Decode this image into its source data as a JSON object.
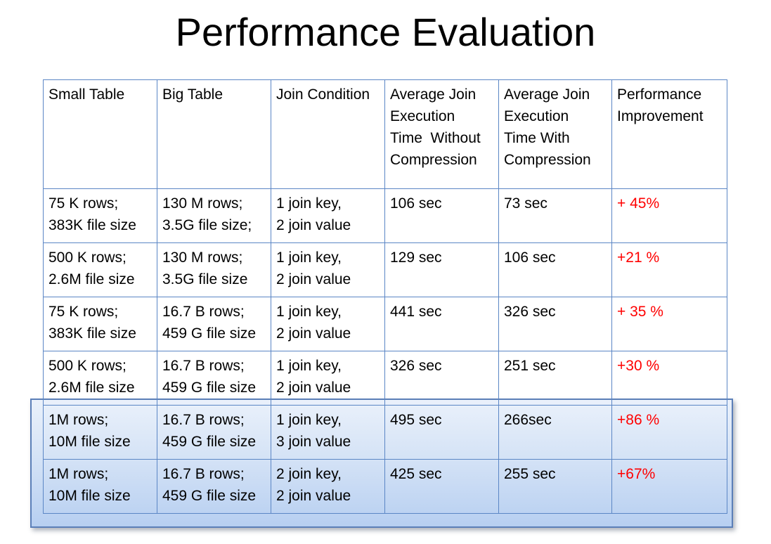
{
  "title": "Performance Evaluation",
  "table": {
    "headers": [
      {
        "lines": [
          "Small Table"
        ],
        "bold": false
      },
      {
        "lines": [
          "Big Table"
        ],
        "bold": false
      },
      {
        "lines": [
          "Join Condition"
        ],
        "bold": false
      },
      {
        "lines": [
          "Average Join",
          "Execution",
          "Time  Without",
          "Compression"
        ],
        "bold": true
      },
      {
        "lines": [
          "Average Join",
          "Execution",
          "Time With",
          "Compression"
        ],
        "bold": true
      },
      {
        "lines": [
          "Performance",
          "Improvement"
        ],
        "bold": true
      }
    ],
    "rows": [
      {
        "highlighted": false,
        "small_table": [
          "75 K rows;",
          "383K file size"
        ],
        "big_table": [
          "130 M rows;",
          "3.5G file size;"
        ],
        "join_condition": [
          "1 join key,",
          "2 join value"
        ],
        "without_compression": "106 sec",
        "with_compression": "73 sec",
        "improvement": "+ 45%"
      },
      {
        "highlighted": false,
        "small_table": [
          "500 K rows;",
          "2.6M file size"
        ],
        "big_table": [
          "130 M rows;",
          "3.5G file size"
        ],
        "join_condition": [
          "1 join key,",
          "2 join value"
        ],
        "without_compression": "129 sec",
        "with_compression": "106 sec",
        "improvement": "+21 %"
      },
      {
        "highlighted": false,
        "small_table": [
          "75 K rows;",
          "383K file size"
        ],
        "big_table": [
          "16.7 B rows;",
          "459 G file size"
        ],
        "join_condition": [
          "1 join key,",
          "2 join value"
        ],
        "without_compression": "441 sec",
        "with_compression": "326 sec",
        "improvement": "+ 35 %"
      },
      {
        "highlighted": false,
        "small_table": [
          "500 K rows;",
          "2.6M file size"
        ],
        "big_table": [
          "16.7 B rows;",
          "459 G file size"
        ],
        "join_condition": [
          "1 join key,",
          "2 join value"
        ],
        "without_compression": "326 sec",
        "with_compression": "251 sec",
        "improvement": "+30 %"
      },
      {
        "highlighted": true,
        "small_table": [
          "1M rows;",
          "10M file size"
        ],
        "big_table": [
          "16.7 B rows;",
          "459 G file size"
        ],
        "join_condition": [
          "1 join key,",
          "3 join value"
        ],
        "without_compression": "495 sec",
        "with_compression": "266sec",
        "improvement": "+86 %"
      },
      {
        "highlighted": true,
        "small_table": [
          "1M rows;",
          "10M file size"
        ],
        "big_table": [
          "16.7 B rows;",
          "459 G file size"
        ],
        "join_condition": [
          "2 join key,",
          "2 join value"
        ],
        "without_compression": "425 sec",
        "with_compression": "255 sec",
        "improvement": "+67%"
      }
    ]
  },
  "colors": {
    "grid_border": "#5b86c5",
    "improvement_text": "#ff0000",
    "highlight_border": "#5b7fb8"
  }
}
